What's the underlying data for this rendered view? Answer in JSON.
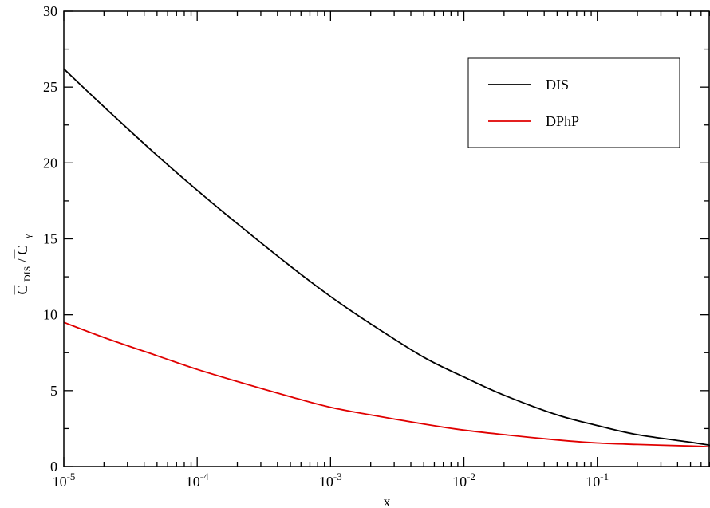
{
  "chart_data": {
    "type": "line",
    "title": "",
    "xlabel": "x",
    "ylabel_parts": {
      "numerator_symbol": "C",
      "numerator_subscript": "DIS",
      "slash": "/",
      "denominator_symbol": "C",
      "denominator_subscript": "γ"
    },
    "xscale": "log",
    "xlim": [
      1e-05,
      0.7
    ],
    "ylim": [
      0,
      30
    ],
    "x_ticks": [
      {
        "value": 1e-05,
        "base": "10",
        "exp": "-5"
      },
      {
        "value": 0.0001,
        "base": "10",
        "exp": "-4"
      },
      {
        "value": 0.001,
        "base": "10",
        "exp": "-3"
      },
      {
        "value": 0.01,
        "base": "10",
        "exp": "-2"
      },
      {
        "value": 0.1,
        "base": "10",
        "exp": "-1"
      }
    ],
    "y_ticks": [
      {
        "value": 0,
        "label": "0"
      },
      {
        "value": 5,
        "label": "5"
      },
      {
        "value": 10,
        "label": "10"
      },
      {
        "value": 15,
        "label": "15"
      },
      {
        "value": 20,
        "label": "20"
      },
      {
        "value": 25,
        "label": "25"
      },
      {
        "value": 30,
        "label": "30"
      }
    ],
    "grid": false,
    "legend_position": "top-right",
    "series": [
      {
        "name": "DIS",
        "color": "#000000",
        "x": [
          1e-05,
          2e-05,
          5e-05,
          0.0001,
          0.0002,
          0.0005,
          0.001,
          0.002,
          0.005,
          0.01,
          0.02,
          0.05,
          0.1,
          0.2,
          0.5,
          0.7
        ],
        "y": [
          26.2,
          23.7,
          20.5,
          18.2,
          16.0,
          13.2,
          11.2,
          9.4,
          7.2,
          5.9,
          4.7,
          3.4,
          2.7,
          2.1,
          1.6,
          1.4
        ]
      },
      {
        "name": "DPhP",
        "color": "#e00000",
        "x": [
          1e-05,
          2e-05,
          5e-05,
          0.0001,
          0.0002,
          0.0005,
          0.001,
          0.002,
          0.005,
          0.01,
          0.02,
          0.05,
          0.1,
          0.2,
          0.5,
          0.7
        ],
        "y": [
          9.5,
          8.5,
          7.3,
          6.4,
          5.6,
          4.6,
          3.9,
          3.4,
          2.8,
          2.4,
          2.1,
          1.75,
          1.55,
          1.45,
          1.35,
          1.3
        ]
      }
    ]
  }
}
